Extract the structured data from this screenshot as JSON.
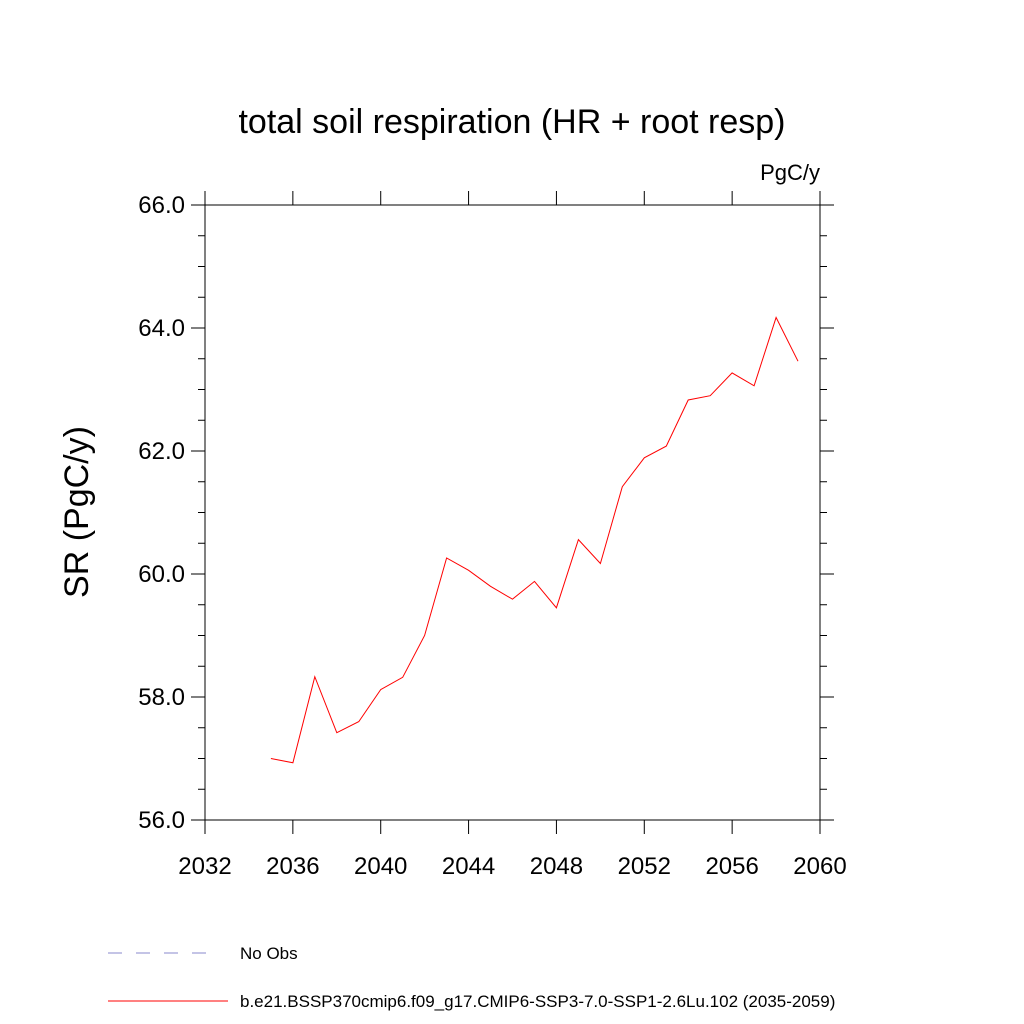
{
  "chart_data": {
    "type": "line",
    "title": "total soil respiration (HR + root resp)",
    "units_label": "PgC/y",
    "xlabel": "",
    "ylabel": "SR  (PgC/y)",
    "xlim": [
      2032,
      2060
    ],
    "ylim": [
      56.0,
      66.0
    ],
    "x_ticks": [
      2032,
      2036,
      2040,
      2044,
      2048,
      2052,
      2056,
      2060
    ],
    "x_tick_labels": [
      "2032",
      "2036",
      "2040",
      "2044",
      "2048",
      "2052",
      "2056",
      "2060"
    ],
    "y_ticks": [
      56.0,
      58.0,
      60.0,
      62.0,
      64.0,
      66.0
    ],
    "y_tick_labels": [
      "56.0",
      "58.0",
      "60.0",
      "62.0",
      "64.0",
      "66.0"
    ],
    "grid": false,
    "legend_placement": "bottom-left",
    "series": [
      {
        "name": "b.e21.BSSP370cmip6.f09_g17.CMIP6-SSP3-7.0-SSP1-2.6Lu.102 (2035-2059)",
        "color": "#ff0000",
        "style": "solid",
        "x": [
          2035,
          2036,
          2037,
          2038,
          2039,
          2040,
          2041,
          2042,
          2043,
          2044,
          2045,
          2046,
          2047,
          2048,
          2049,
          2050,
          2051,
          2052,
          2053,
          2054,
          2055,
          2056,
          2057,
          2058,
          2059
        ],
        "values": [
          57.0,
          56.93,
          58.33,
          57.42,
          57.6,
          58.12,
          58.32,
          59.0,
          60.26,
          60.06,
          59.8,
          59.59,
          59.88,
          59.45,
          60.56,
          60.17,
          61.42,
          61.89,
          62.08,
          62.83,
          62.9,
          63.27,
          63.06,
          64.17,
          63.46
        ]
      }
    ],
    "legend": [
      {
        "label": "No Obs",
        "color": "#8888cc",
        "style": "dashed"
      },
      {
        "label": "b.e21.BSSP370cmip6.f09_g17.CMIP6-SSP3-7.0-SSP1-2.6Lu.102 (2035-2059)",
        "color": "#ff0000",
        "style": "solid"
      }
    ]
  }
}
